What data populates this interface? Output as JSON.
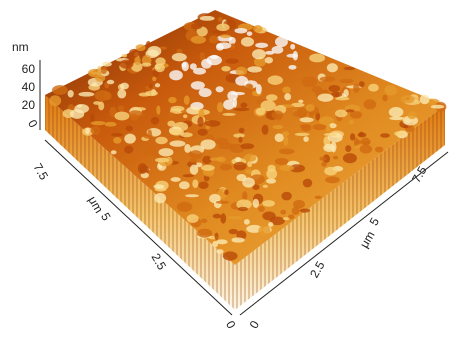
{
  "z_axis": {
    "unit": "nm",
    "ticks": [
      "60",
      "40",
      "20",
      "0"
    ]
  },
  "x_axis": {
    "ticks": [
      "7.5",
      "5",
      "2.5",
      "0"
    ],
    "unit": "μm"
  },
  "y_axis": {
    "ticks": [
      "0",
      "2.5",
      "5",
      "7.5"
    ],
    "unit": "μm"
  }
}
